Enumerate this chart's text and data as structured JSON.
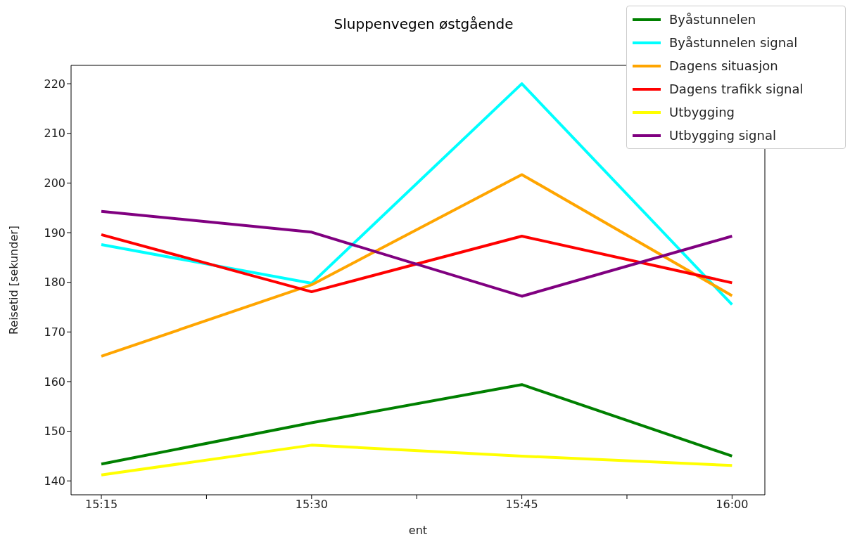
{
  "chart_data": {
    "type": "line",
    "title": "Sluppenvegen østgående",
    "xlabel": "ent",
    "ylabel": "Reisetid [sekunder]",
    "x": [
      15.25,
      15.5,
      15.75,
      16.0
    ],
    "xlim": [
      15.214,
      16.039
    ],
    "xticks": [
      {
        "value": 15.25,
        "label": "15:15"
      },
      {
        "value": 15.375,
        "label": null
      },
      {
        "value": 15.5,
        "label": "15:30"
      },
      {
        "value": 15.625,
        "label": null
      },
      {
        "value": 15.75,
        "label": "15:45"
      },
      {
        "value": 15.875,
        "label": null
      },
      {
        "value": 16.0,
        "label": "16:00"
      }
    ],
    "ylim": [
      137.2,
      223.7
    ],
    "yticks": [
      140,
      150,
      160,
      170,
      180,
      190,
      200,
      210,
      220
    ],
    "grid": false,
    "legend": "top right",
    "marker": "none",
    "line_style": "solid",
    "series": [
      {
        "name": "Byåstunnelen",
        "color": "#008000",
        "values": [
          143.4,
          151.7,
          159.4,
          145.0
        ]
      },
      {
        "name": "Byåstunnelen signal",
        "color": "#00ffff",
        "values": [
          187.6,
          179.8,
          220.0,
          175.5
        ]
      },
      {
        "name": "Dagens situasjon",
        "color": "#ffa500",
        "values": [
          165.1,
          179.5,
          201.7,
          177.3
        ]
      },
      {
        "name": "Dagens trafikk signal",
        "color": "#ff0000",
        "values": [
          189.6,
          178.1,
          189.3,
          179.9
        ]
      },
      {
        "name": "Utbygging",
        "color": "#ffff00",
        "values": [
          141.2,
          147.2,
          145.0,
          143.1
        ]
      },
      {
        "name": "Utbygging signal",
        "color": "#800080",
        "values": [
          194.3,
          190.1,
          177.2,
          189.3
        ]
      }
    ]
  }
}
